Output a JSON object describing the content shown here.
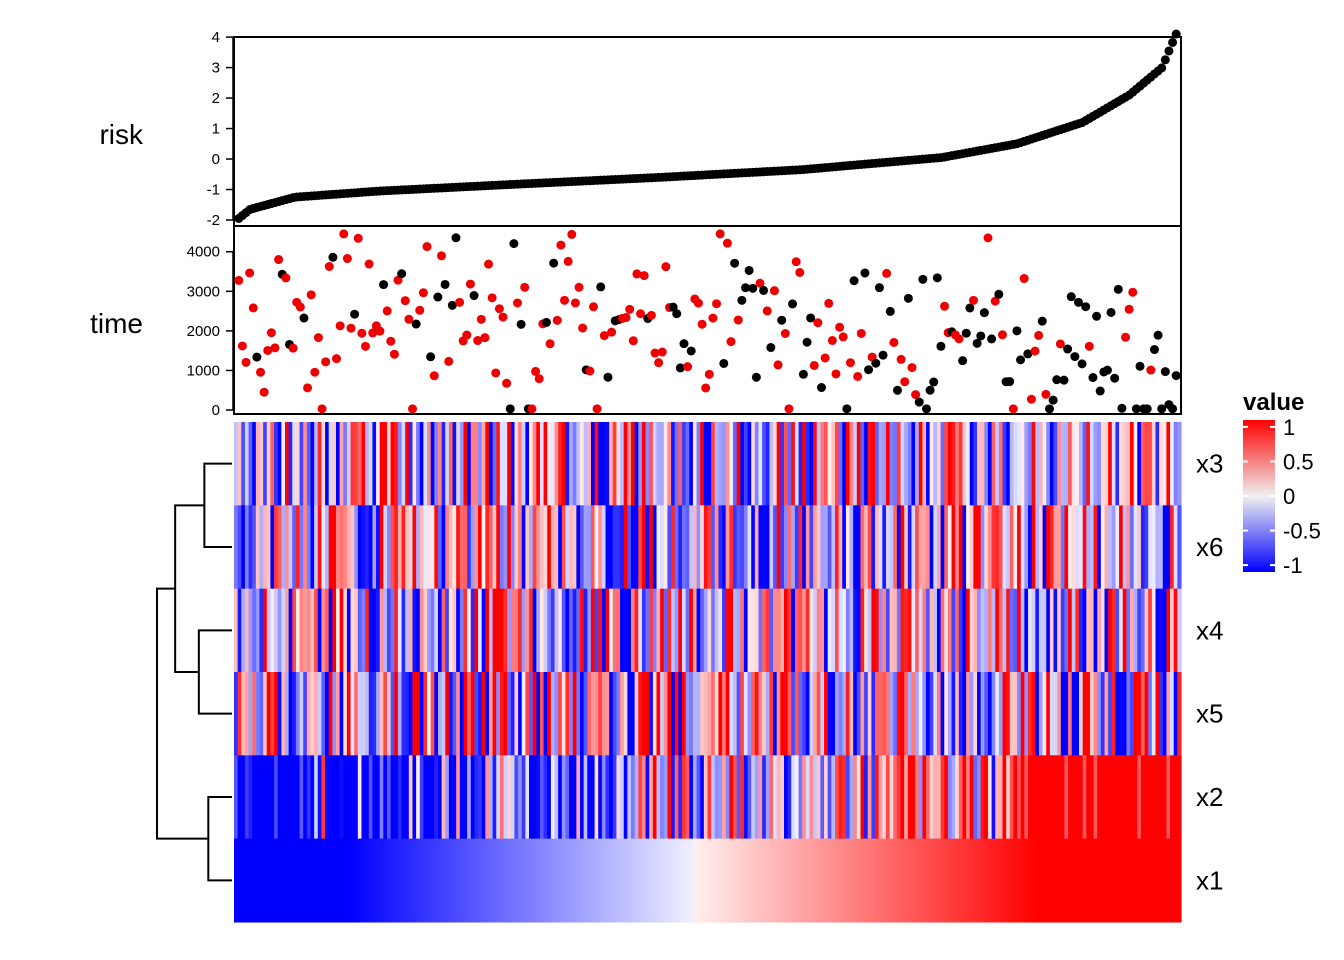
{
  "chart_data": {
    "type": "scatter+heatmap",
    "n_samples": 260,
    "risk_panel": {
      "ylabel": "risk",
      "yticks": [
        -2,
        -1,
        0,
        1,
        2,
        3,
        4
      ],
      "ylim": [
        -2,
        4.2
      ],
      "risk_profile": [
        [
          0,
          -1.95
        ],
        [
          0.012,
          -1.65
        ],
        [
          0.03,
          -1.5
        ],
        [
          0.06,
          -1.25
        ],
        [
          0.15,
          -1.05
        ],
        [
          0.3,
          -0.82
        ],
        [
          0.45,
          -0.6
        ],
        [
          0.6,
          -0.35
        ],
        [
          0.75,
          0.05
        ],
        [
          0.83,
          0.5
        ],
        [
          0.9,
          1.2
        ],
        [
          0.95,
          2.1
        ],
        [
          0.985,
          3.0
        ],
        [
          0.993,
          3.6
        ],
        [
          1.0,
          4.1
        ]
      ]
    },
    "time_panel": {
      "ylabel": "time",
      "yticks": [
        0,
        1000,
        2000,
        3000,
        4000
      ],
      "ylim": [
        -100,
        4650
      ],
      "point_colors": {
        "event": "#ee0000",
        "censored": "#000000"
      }
    },
    "heatmap": {
      "rows": [
        "x3",
        "x6",
        "x4",
        "x5",
        "x2",
        "x1"
      ],
      "row_types": [
        "noise",
        "noise",
        "noise",
        "noise",
        "trend",
        "ramp"
      ],
      "dendrogram": {
        "merges": [
          {
            "a": 0,
            "b": 1,
            "height": 0.35
          },
          {
            "a": 2,
            "b": 3,
            "height": 0.42
          },
          {
            "a": 4,
            "b": 5,
            "height": 0.3
          },
          {
            "a": 6,
            "b": 7,
            "height": 0.72
          },
          {
            "a": 8,
            "b": 9,
            "height": 0.95
          }
        ]
      }
    },
    "legend": {
      "title": "value",
      "ticks": [
        1,
        0.5,
        0,
        -0.5,
        -1
      ],
      "tick_labels": [
        "1",
        "0.5",
        "0",
        "-0.5",
        "-1"
      ],
      "colors": {
        "high": "#ff0000",
        "mid": "#f0f0f0",
        "low": "#0000ff"
      }
    }
  }
}
